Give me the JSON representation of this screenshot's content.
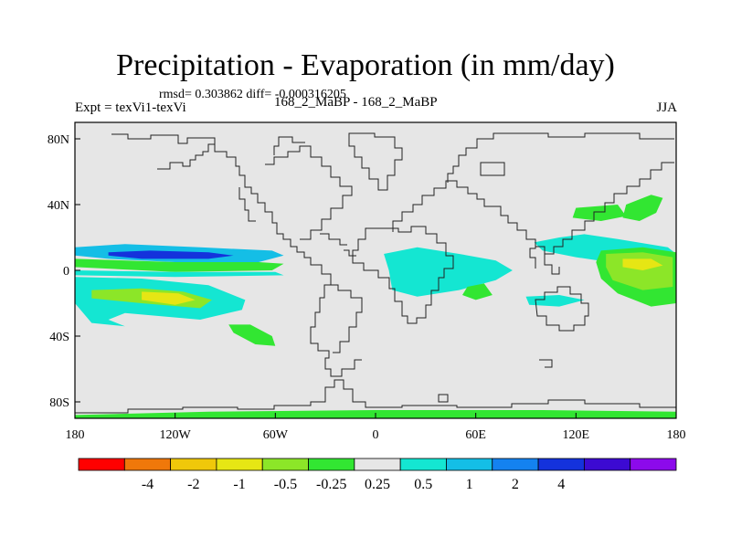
{
  "title": "Precipitation - Evaporation (in mm/day)",
  "stats": "rmsd= 0.303862 diff= -0.000316205",
  "experiment": "Expt = texVi1-texVi",
  "subtitle": "168_2_MaBP - 168_2_MaBP",
  "season": "JJA",
  "chart_data": {
    "type": "heatmap",
    "title": "Precipitation - Evaporation (in mm/day)",
    "units": "mm/day",
    "projection": "cylindrical equidistant",
    "xlim": [
      -180,
      180
    ],
    "ylim": [
      -90,
      90
    ],
    "x_ticks": [
      {
        "value": -180,
        "label": "180"
      },
      {
        "value": -120,
        "label": "120W"
      },
      {
        "value": -60,
        "label": "60W"
      },
      {
        "value": 0,
        "label": "0"
      },
      {
        "value": 60,
        "label": "60E"
      },
      {
        "value": 120,
        "label": "120E"
      },
      {
        "value": 180,
        "label": "180"
      }
    ],
    "y_ticks": [
      {
        "value": 80,
        "label": "80N"
      },
      {
        "value": 40,
        "label": "40N"
      },
      {
        "value": 0,
        "label": "0"
      },
      {
        "value": -40,
        "label": "40S"
      },
      {
        "value": -80,
        "label": "80S"
      }
    ],
    "background_color": "#e6e6e6",
    "colorbar": {
      "colors": [
        "#ff0000",
        "#f0780a",
        "#f0c80a",
        "#e6e614",
        "#8ce628",
        "#32e632",
        "#e6e6e6",
        "#14e6d2",
        "#14bee6",
        "#1482f0",
        "#1432dc",
        "#3c0ad2",
        "#8c0aeb"
      ],
      "labels": [
        "-4",
        "-2",
        "-1",
        "-0.5",
        "-0.25",
        "0.25",
        "0.5",
        "1",
        "2",
        "4"
      ]
    },
    "regions": [
      {
        "level": 0.5,
        "color": "#14bee6",
        "polygon": [
          [
            -180,
            14
          ],
          [
            -150,
            16
          ],
          [
            -105,
            14
          ],
          [
            -62,
            12
          ],
          [
            -55,
            9
          ],
          [
            -70,
            5
          ],
          [
            -120,
            5
          ],
          [
            -160,
            7
          ],
          [
            -180,
            9
          ]
        ]
      },
      {
        "level": 2,
        "color": "#1432dc",
        "polygon": [
          [
            -160,
            11
          ],
          [
            -135,
            12
          ],
          [
            -100,
            11
          ],
          [
            -85,
            9
          ],
          [
            -100,
            7
          ],
          [
            -140,
            7
          ],
          [
            -160,
            9
          ]
        ]
      },
      {
        "level": -0.25,
        "color": "#32e632",
        "polygon": [
          [
            -180,
            7
          ],
          [
            -120,
            5
          ],
          [
            -70,
            5
          ],
          [
            -55,
            4
          ],
          [
            -62,
            0
          ],
          [
            -120,
            -1
          ],
          [
            -180,
            2
          ]
        ]
      },
      {
        "level": 0.25,
        "color": "#14e6d2",
        "polygon": [
          [
            -180,
            0
          ],
          [
            -120,
            -1
          ],
          [
            -60,
            -1
          ],
          [
            -55,
            -3
          ],
          [
            -120,
            -4
          ],
          [
            -180,
            -3
          ]
        ]
      },
      {
        "level": -0.25,
        "color": "#32e632",
        "polygon": [
          [
            -180,
            -9
          ],
          [
            -140,
            -8
          ],
          [
            -100,
            -12
          ],
          [
            -82,
            -20
          ],
          [
            -105,
            -27
          ],
          [
            -150,
            -22
          ],
          [
            -180,
            -16
          ]
        ]
      },
      {
        "level": 0.25,
        "color": "#14e6d2",
        "polygon": [
          [
            -180,
            -4
          ],
          [
            -140,
            -5
          ],
          [
            -100,
            -9
          ],
          [
            -78,
            -18
          ],
          [
            -80,
            -24
          ],
          [
            -105,
            -30
          ],
          [
            -150,
            -26
          ],
          [
            -160,
            -30
          ],
          [
            -150,
            -34
          ],
          [
            -170,
            -32
          ],
          [
            -180,
            -20
          ]
        ]
      },
      {
        "level": -0.5,
        "color": "#8ce628",
        "polygon": [
          [
            -170,
            -12
          ],
          [
            -140,
            -11
          ],
          [
            -115,
            -13
          ],
          [
            -98,
            -18
          ],
          [
            -105,
            -23
          ],
          [
            -140,
            -20
          ],
          [
            -170,
            -17
          ]
        ]
      },
      {
        "level": -1,
        "color": "#e6e614",
        "polygon": [
          [
            -140,
            -13
          ],
          [
            -118,
            -14
          ],
          [
            -108,
            -18
          ],
          [
            -120,
            -21
          ],
          [
            -140,
            -18
          ]
        ]
      },
      {
        "level": -0.25,
        "color": "#32e632",
        "polygon": [
          [
            -88,
            -33
          ],
          [
            -75,
            -33
          ],
          [
            -62,
            -40
          ],
          [
            -60,
            -46
          ],
          [
            -72,
            -45
          ],
          [
            -85,
            -38
          ]
        ]
      },
      {
        "level": 0.5,
        "color": "#14bee6",
        "polygon": [
          [
            10,
            5
          ],
          [
            25,
            8
          ],
          [
            50,
            5
          ],
          [
            70,
            3
          ],
          [
            78,
            -2
          ],
          [
            60,
            -6
          ],
          [
            40,
            -10
          ],
          [
            25,
            -12
          ],
          [
            15,
            -8
          ],
          [
            15,
            -2
          ]
        ]
      },
      {
        "level": 0.25,
        "color": "#14e6d2",
        "polygon": [
          [
            5,
            10
          ],
          [
            25,
            14
          ],
          [
            50,
            10
          ],
          [
            72,
            6
          ],
          [
            82,
            0
          ],
          [
            72,
            -6
          ],
          [
            50,
            -12
          ],
          [
            25,
            -16
          ],
          [
            10,
            -12
          ],
          [
            8,
            0
          ]
        ]
      },
      {
        "level": -0.25,
        "color": "#32e632",
        "polygon": [
          [
            55,
            -10
          ],
          [
            65,
            -8
          ],
          [
            70,
            -15
          ],
          [
            60,
            -18
          ],
          [
            52,
            -15
          ]
        ]
      },
      {
        "level": 0.25,
        "color": "#14e6d2",
        "polygon": [
          [
            90,
            -16
          ],
          [
            110,
            -15
          ],
          [
            125,
            -18
          ],
          [
            110,
            -22
          ],
          [
            92,
            -21
          ]
        ]
      },
      {
        "level": 0.25,
        "color": "#14e6d2",
        "polygon": [
          [
            95,
            17
          ],
          [
            110,
            20
          ],
          [
            125,
            22
          ],
          [
            145,
            19
          ],
          [
            175,
            14
          ],
          [
            180,
            10
          ],
          [
            175,
            5
          ],
          [
            140,
            5
          ],
          [
            120,
            8
          ],
          [
            100,
            12
          ]
        ]
      },
      {
        "level": -0.25,
        "color": "#32e632",
        "polygon": [
          [
            135,
            12
          ],
          [
            160,
            14
          ],
          [
            180,
            11
          ],
          [
            180,
            -20
          ],
          [
            165,
            -22
          ],
          [
            145,
            -14
          ],
          [
            135,
            -5
          ],
          [
            132,
            5
          ]
        ]
      },
      {
        "level": -0.5,
        "color": "#8ce628",
        "polygon": [
          [
            138,
            10
          ],
          [
            160,
            11
          ],
          [
            178,
            8
          ],
          [
            178,
            -10
          ],
          [
            160,
            -12
          ],
          [
            142,
            -6
          ],
          [
            138,
            2
          ]
        ]
      },
      {
        "level": -1,
        "color": "#e6e614",
        "polygon": [
          [
            148,
            7
          ],
          [
            165,
            7
          ],
          [
            172,
            3
          ],
          [
            160,
            0
          ],
          [
            148,
            2
          ]
        ]
      },
      {
        "level": -0.25,
        "color": "#32e632",
        "polygon": [
          [
            150,
            40
          ],
          [
            165,
            46
          ],
          [
            172,
            44
          ],
          [
            168,
            35
          ],
          [
            158,
            30
          ],
          [
            148,
            32
          ]
        ]
      },
      {
        "level": -0.25,
        "color": "#32e632",
        "polygon": [
          [
            120,
            38
          ],
          [
            145,
            40
          ],
          [
            150,
            33
          ],
          [
            135,
            30
          ],
          [
            118,
            32
          ]
        ]
      },
      {
        "level": -0.25,
        "color": "#32e632",
        "polygon": [
          [
            -180,
            -88
          ],
          [
            -100,
            -86
          ],
          [
            0,
            -85
          ],
          [
            100,
            -85
          ],
          [
            180,
            -86
          ],
          [
            180,
            -90
          ],
          [
            -180,
            -90
          ]
        ]
      }
    ]
  }
}
